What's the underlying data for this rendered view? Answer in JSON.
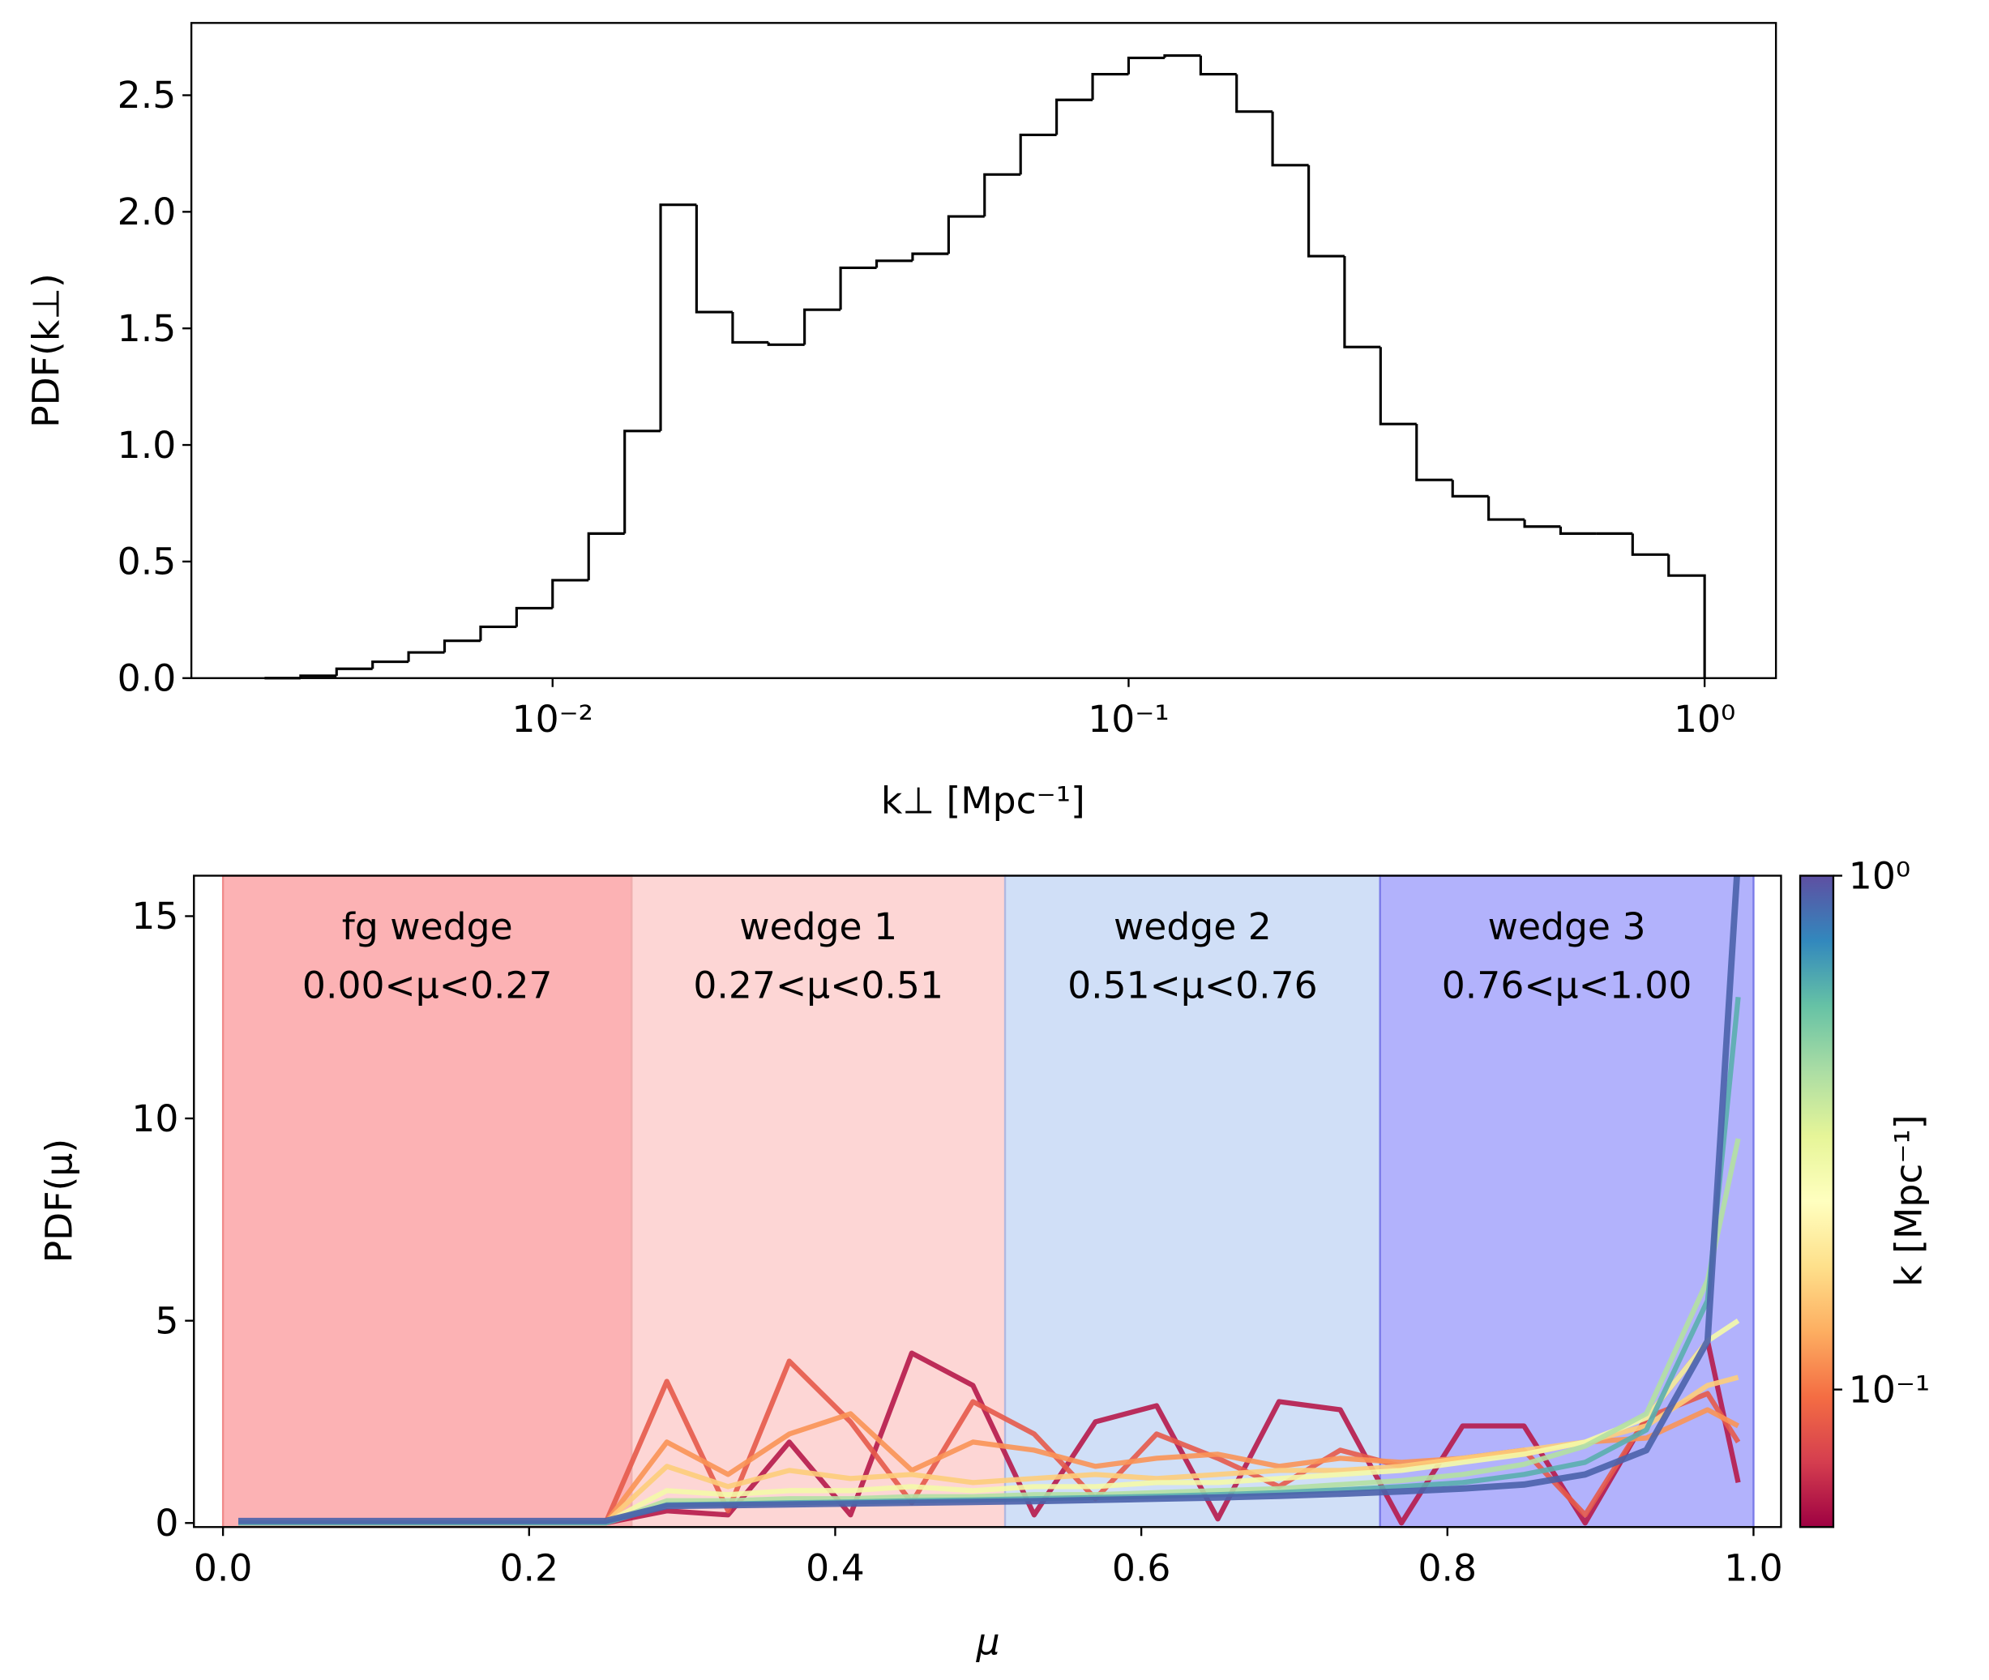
{
  "chart_data": [
    {
      "type": "histogram",
      "xlabel": "k⊥ [Mpc⁻¹]",
      "ylabel": "PDF(k⊥)",
      "log_x": true,
      "color": "#000000",
      "bins": [
        0.003162,
        0.003652,
        0.004217,
        0.00487,
        0.005623,
        0.006494,
        0.007499,
        0.00866,
        0.01,
        0.01155,
        0.01334,
        0.0154,
        0.01778,
        0.02054,
        0.02371,
        0.02738,
        0.03162,
        0.03652,
        0.04217,
        0.0487,
        0.05623,
        0.06494,
        0.07499,
        0.0866,
        0.1,
        0.1155,
        0.1334,
        0.154,
        0.1778,
        0.2054,
        0.2371,
        0.2738,
        0.3162,
        0.3652,
        0.4217,
        0.487,
        0.5623,
        0.6494,
        0.7499,
        0.866,
        1.0
      ],
      "counts": [
        0.0,
        0.01,
        0.04,
        0.07,
        0.11,
        0.16,
        0.22,
        0.3,
        0.42,
        0.62,
        1.06,
        2.03,
        1.57,
        1.44,
        1.43,
        1.58,
        1.76,
        1.79,
        1.82,
        1.98,
        2.16,
        2.33,
        2.48,
        2.59,
        2.66,
        2.67,
        2.59,
        2.43,
        2.2,
        1.81,
        1.42,
        1.09,
        0.85,
        0.78,
        0.68,
        0.65,
        0.62,
        0.62,
        0.53,
        0.44
      ],
      "xlim": [
        0.00236,
        1.33
      ],
      "ylim": [
        0,
        2.81
      ],
      "xticks": [
        {
          "value": 0.01,
          "label": "10⁻²"
        },
        {
          "value": 0.1,
          "label": "10⁻¹"
        },
        {
          "value": 1,
          "label": "10⁰"
        }
      ],
      "yticks": [
        {
          "value": 0,
          "label": "0.0"
        },
        0.5,
        {
          "value": 1,
          "label": "1.0"
        },
        1.5,
        {
          "value": 2,
          "label": "2.0"
        },
        2.5
      ]
    },
    {
      "type": "line",
      "xlabel": "μ",
      "ylabel": "PDF(μ)",
      "x": [
        0.01,
        0.05,
        0.09,
        0.13,
        0.17,
        0.21,
        0.25,
        0.29,
        0.33,
        0.37,
        0.41,
        0.45,
        0.49,
        0.53,
        0.57,
        0.61,
        0.65,
        0.69,
        0.73,
        0.77,
        0.81,
        0.85,
        0.89,
        0.93,
        0.97,
        0.99
      ],
      "series": [
        {
          "color": "#b61a4a",
          "values": [
            0,
            0,
            0,
            0,
            0,
            0,
            0,
            0.3,
            0.2,
            2.0,
            0.2,
            4.2,
            3.4,
            0.2,
            2.5,
            2.9,
            0.1,
            3.0,
            2.8,
            0.0,
            2.4,
            2.4,
            0.0,
            2.6,
            4.5,
            1.0
          ]
        },
        {
          "color": "#e55a4a",
          "values": [
            0,
            0,
            0,
            0,
            0,
            0,
            0,
            3.5,
            0.3,
            4.0,
            2.5,
            0.5,
            3.0,
            2.2,
            0.6,
            2.2,
            1.6,
            0.9,
            1.8,
            1.4,
            1.6,
            1.8,
            0.2,
            2.6,
            3.2,
            2.0
          ]
        },
        {
          "color": "#f99455",
          "values": [
            0,
            0,
            0,
            0,
            0,
            0,
            0,
            2.0,
            1.2,
            2.2,
            2.7,
            1.3,
            2.0,
            1.8,
            1.4,
            1.6,
            1.7,
            1.4,
            1.6,
            1.5,
            1.6,
            1.7,
            2.0,
            2.1,
            2.8,
            2.4
          ]
        },
        {
          "color": "#fdcd7a",
          "values": [
            0,
            0,
            0,
            0,
            0,
            0,
            0,
            1.4,
            0.9,
            1.3,
            1.1,
            1.2,
            1.0,
            1.1,
            1.2,
            1.1,
            1.2,
            1.3,
            1.3,
            1.4,
            1.6,
            1.8,
            2.0,
            2.4,
            3.4,
            3.6
          ]
        },
        {
          "color": "#f4f9a8",
          "values": [
            0,
            0,
            0,
            0,
            0,
            0,
            0,
            0.8,
            0.7,
            0.8,
            0.8,
            0.9,
            0.8,
            0.9,
            0.9,
            1.0,
            1.0,
            1.1,
            1.2,
            1.3,
            1.5,
            1.7,
            2.0,
            2.6,
            4.5,
            5.0
          ]
        },
        {
          "color": "#b2e0a2",
          "values": [
            0,
            0,
            0,
            0,
            0,
            0,
            0,
            0.55,
            0.55,
            0.6,
            0.6,
            0.65,
            0.65,
            0.7,
            0.7,
            0.75,
            0.8,
            0.85,
            0.95,
            1.05,
            1.2,
            1.45,
            1.9,
            2.7,
            6.0,
            9.5
          ]
        },
        {
          "color": "#5aaeae",
          "values": [
            0,
            0,
            0,
            0,
            0,
            0,
            0,
            0.45,
            0.47,
            0.5,
            0.52,
            0.55,
            0.57,
            0.6,
            0.63,
            0.66,
            0.7,
            0.75,
            0.82,
            0.9,
            1.0,
            1.2,
            1.5,
            2.3,
            5.5,
            13.0
          ]
        },
        {
          "color": "#4a62ab",
          "values": [
            0.05,
            0.05,
            0.05,
            0.05,
            0.05,
            0.05,
            0.05,
            0.42,
            0.44,
            0.46,
            0.48,
            0.5,
            0.52,
            0.54,
            0.57,
            0.6,
            0.63,
            0.67,
            0.72,
            0.78,
            0.85,
            0.95,
            1.2,
            1.8,
            4.5,
            16.5
          ]
        }
      ],
      "regions": [
        {
          "name": "fg wedge",
          "range_label": "0.00<μ<0.27",
          "range": [
            0,
            0.267
          ],
          "color": "#fcb2b4",
          "edge": "#f08a8a"
        },
        {
          "name": "wedge 1",
          "range_label": "0.27<μ<0.51",
          "range": [
            0.267,
            0.511
          ],
          "color": "#fdd6d5",
          "edge": "#f0b0b0"
        },
        {
          "name": "wedge 2",
          "range_label": "0.51<μ<0.76",
          "range": [
            0.511,
            0.756
          ],
          "color": "#d0dff7",
          "edge": "#b0b8e0"
        },
        {
          "name": "wedge 3",
          "range_label": "0.76<μ<1.00",
          "range": [
            0.756,
            1.0
          ],
          "color": "#b2b2fc",
          "edge": "#7a7ae8"
        }
      ],
      "xlim": [
        -0.019,
        1.018
      ],
      "ylim": [
        -0.1,
        16.0
      ],
      "xticks": [
        {
          "value": 0,
          "label": "0.0"
        },
        0.2,
        0.4,
        0.6,
        0.8,
        {
          "value": 1,
          "label": "1.0"
        }
      ],
      "yticks": [
        0,
        5,
        10,
        15
      ],
      "colorbar": {
        "label": "k [Mpc⁻¹]",
        "lim": [
          0.054,
          1
        ],
        "log": true,
        "ticks": [
          {
            "value": 0.1,
            "label": "10⁻¹"
          },
          {
            "value": 1,
            "label": "10⁰"
          }
        ]
      }
    }
  ]
}
